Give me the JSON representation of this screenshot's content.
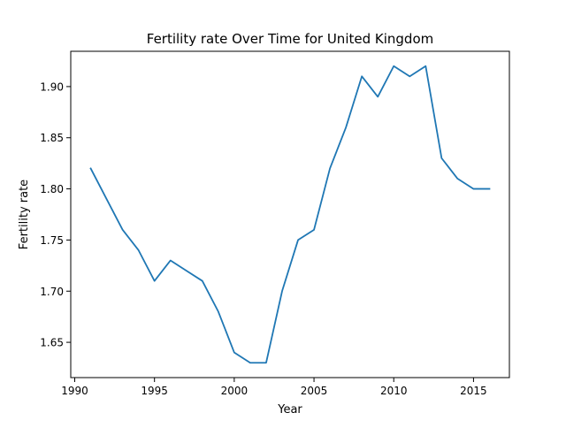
{
  "chart_data": {
    "type": "line",
    "title": "Fertility rate Over Time for United Kingdom",
    "xlabel": "Year",
    "ylabel": "Fertility rate",
    "xlim": [
      1989.75,
      2017.25
    ],
    "ylim": [
      1.6155,
      1.9345
    ],
    "xticks": [
      1990,
      1995,
      2000,
      2005,
      2010,
      2015
    ],
    "xtick_labels": [
      "1990",
      "1995",
      "2000",
      "2005",
      "2010",
      "2015"
    ],
    "yticks": [
      1.65,
      1.7,
      1.75,
      1.8,
      1.85,
      1.9
    ],
    "ytick_labels": [
      "1.65",
      "1.70",
      "1.75",
      "1.80",
      "1.85",
      "1.90"
    ],
    "grid": false,
    "line_color": "#1f77b4",
    "x": [
      1991,
      1992,
      1993,
      1994,
      1995,
      1996,
      1997,
      1998,
      1999,
      2000,
      2001,
      2002,
      2003,
      2004,
      2005,
      2006,
      2007,
      2008,
      2009,
      2010,
      2011,
      2012,
      2013,
      2014,
      2015,
      2016
    ],
    "y": [
      1.82,
      1.79,
      1.76,
      1.74,
      1.71,
      1.73,
      1.72,
      1.71,
      1.68,
      1.64,
      1.63,
      1.63,
      1.7,
      1.75,
      1.76,
      1.82,
      1.86,
      1.91,
      1.89,
      1.92,
      1.91,
      1.92,
      1.83,
      1.81,
      1.8,
      1.8
    ]
  }
}
